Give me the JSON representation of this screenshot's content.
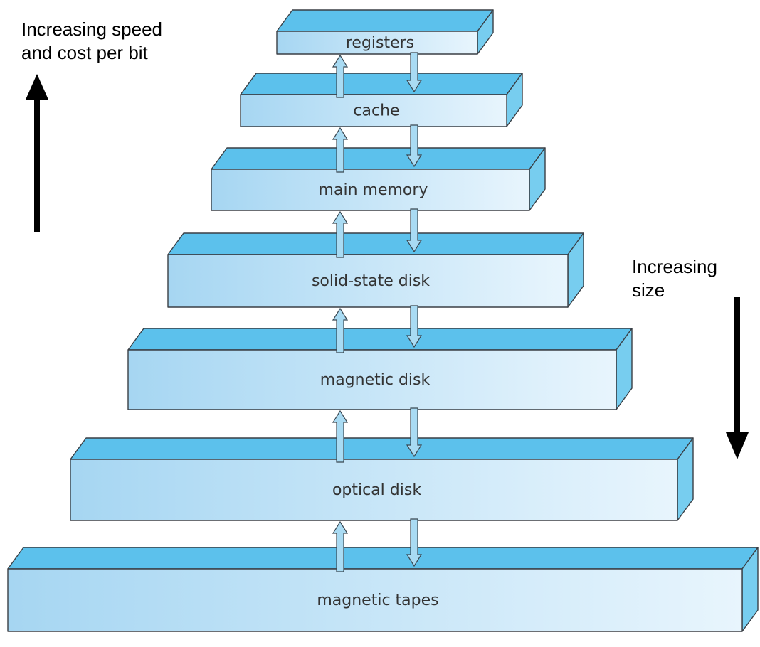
{
  "left_label": {
    "line1": "Increasing speed",
    "line2": "and cost per bit"
  },
  "right_label": {
    "line1": "Increasing",
    "line2": "size"
  },
  "tiers": [
    {
      "label": "registers"
    },
    {
      "label": "cache"
    },
    {
      "label": "main memory"
    },
    {
      "label": "solid-state disk"
    },
    {
      "label": "magnetic disk"
    },
    {
      "label": "optical disk"
    },
    {
      "label": "magnetic tapes"
    }
  ],
  "colors": {
    "front_light": "#e8f5fd",
    "front_dark": "#a6d6f2",
    "top": "#5cc1ec",
    "side": "#77cdef",
    "arrow_fill": "#a9dbf3",
    "edge": "#3a3f45",
    "indicator_arrow": "#000000"
  }
}
